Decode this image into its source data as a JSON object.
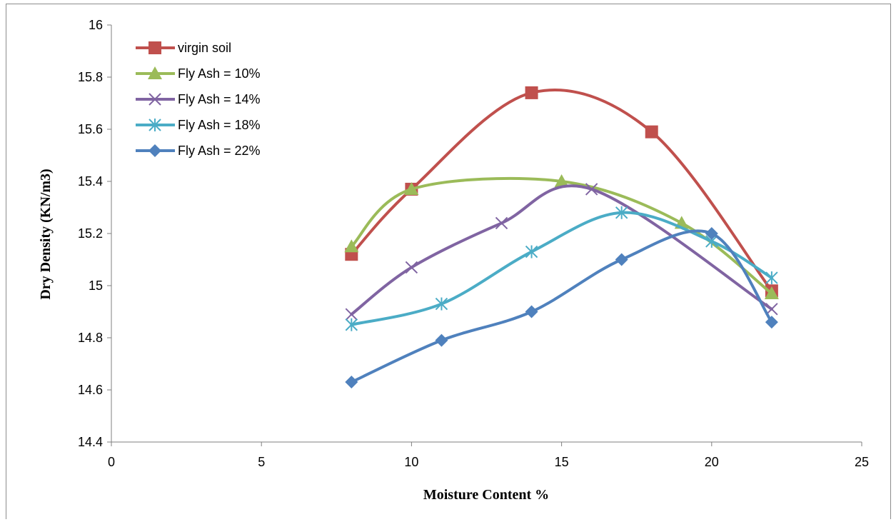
{
  "chart_data": {
    "type": "line",
    "title": "",
    "xlabel": "Moisture Content %",
    "ylabel": "Dry Density (KN/m3)",
    "xlim": [
      0,
      25
    ],
    "ylim": [
      14.4,
      16
    ],
    "xticks": [
      "0",
      "5",
      "10",
      "15",
      "20",
      "25"
    ],
    "yticks": [
      "14.4",
      "14.6",
      "14.8",
      "15",
      "15.2",
      "15.4",
      "15.6",
      "15.8",
      "16"
    ],
    "grid": false,
    "legend_position": "top-left",
    "smooth": true,
    "series": [
      {
        "name": "virgin soil",
        "color": "#C0504D",
        "marker": "square",
        "x": [
          8,
          10,
          14,
          18,
          22
        ],
        "y": [
          15.12,
          15.37,
          15.74,
          15.59,
          14.98
        ]
      },
      {
        "name": "Fly Ash = 10%",
        "color": "#9BBB59",
        "marker": "triangle",
        "x": [
          8,
          10,
          15,
          19,
          22
        ],
        "y": [
          15.15,
          15.37,
          15.4,
          15.24,
          14.97
        ]
      },
      {
        "name": "Fly Ash = 14%",
        "color": "#8064A2",
        "marker": "x",
        "x": [
          8,
          10,
          13,
          16,
          22
        ],
        "y": [
          14.89,
          15.07,
          15.24,
          15.37,
          14.91
        ]
      },
      {
        "name": "Fly Ash = 18%",
        "color": "#4BACC6",
        "marker": "star",
        "x": [
          8,
          11,
          14,
          17,
          20,
          22
        ],
        "y": [
          14.85,
          14.93,
          15.13,
          15.28,
          15.17,
          15.03
        ]
      },
      {
        "name": "Fly Ash = 22%",
        "color": "#4F81BD",
        "marker": "diamond",
        "x": [
          8,
          11,
          14,
          17,
          20,
          22
        ],
        "y": [
          14.63,
          14.79,
          14.9,
          15.1,
          15.2,
          14.86
        ]
      }
    ]
  }
}
